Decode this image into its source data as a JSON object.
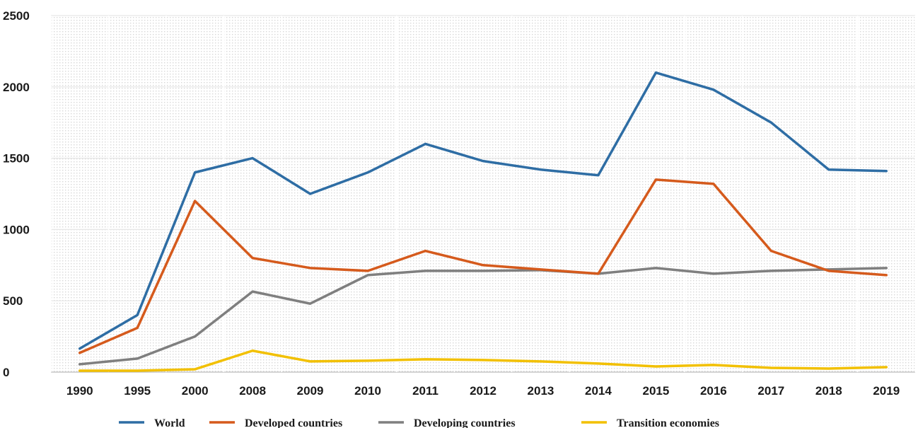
{
  "chart_data": {
    "type": "line",
    "title": "",
    "xlabel": "",
    "ylabel": "",
    "ylim": [
      0,
      2500
    ],
    "yticks": [
      0,
      500,
      1000,
      1500,
      2000,
      2500
    ],
    "grid": true,
    "legend_position": "bottom",
    "categories": [
      "1990",
      "1995",
      "2000",
      "2008",
      "2009",
      "2010",
      "2011",
      "2012",
      "2013",
      "2014",
      "2015",
      "2016",
      "2017",
      "2018",
      "2019"
    ],
    "series": [
      {
        "name": "World",
        "color": "#2e6da4",
        "values": [
          165,
          400,
          1400,
          1500,
          1250,
          1400,
          1600,
          1480,
          1420,
          1380,
          2100,
          1980,
          1750,
          1420,
          1410
        ]
      },
      {
        "name": "Developed countries",
        "color": "#d55a1c",
        "values": [
          135,
          310,
          1200,
          800,
          730,
          710,
          850,
          750,
          720,
          690,
          1350,
          1320,
          850,
          710,
          680
        ]
      },
      {
        "name": "Developing countries",
        "color": "#7f7f7f",
        "values": [
          55,
          95,
          250,
          565,
          480,
          680,
          710,
          710,
          715,
          690,
          730,
          690,
          710,
          720,
          730
        ]
      },
      {
        "name": "Transition economies",
        "color": "#f2c000",
        "values": [
          10,
          10,
          20,
          150,
          75,
          80,
          90,
          85,
          75,
          60,
          40,
          50,
          30,
          25,
          35
        ]
      }
    ]
  }
}
